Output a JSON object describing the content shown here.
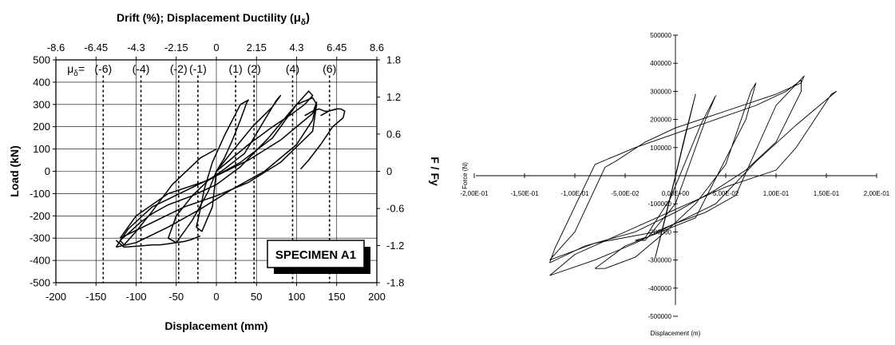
{
  "chart_data": [
    {
      "type": "line",
      "title": "",
      "top_axis": {
        "label": "Drift (%);  Displacement Ductility (",
        "label_symbol": "μ",
        "label_sub": "δ",
        "label_close": ")",
        "ticks": [
          {
            "label": "-8.6",
            "value": -200
          },
          {
            "label": "-6.45",
            "value": -150
          },
          {
            "label": "-4.3",
            "value": -100
          },
          {
            "label": "-2.15",
            "value": -50
          },
          {
            "label": "0",
            "value": 0
          },
          {
            "label": "2.15",
            "value": 50
          },
          {
            "label": "4.3",
            "value": 100
          },
          {
            "label": "6.45",
            "value": 150
          },
          {
            "label": "8.6",
            "value": 200
          }
        ]
      },
      "xlabel": "Displacement (mm)",
      "ylabel": "Load (kN)",
      "y2label": "F / Fy",
      "xlim": [
        -200,
        200
      ],
      "ylim": [
        -500,
        500
      ],
      "xticks": [
        -200,
        -150,
        -100,
        -50,
        0,
        50,
        100,
        150,
        200
      ],
      "yticks": [
        -500,
        -400,
        -300,
        -200,
        -100,
        0,
        100,
        200,
        300,
        400,
        500
      ],
      "y2ticks": [
        {
          "label": "1.8",
          "value": 500
        },
        {
          "label": "1.2",
          "value": 333
        },
        {
          "label": "0.6",
          "value": 167
        },
        {
          "label": "0",
          "value": 0
        },
        {
          "label": "-0.6",
          "value": -167
        },
        {
          "label": "-1.2",
          "value": -333
        },
        {
          "label": "-1.8",
          "value": -500
        }
      ],
      "gridlines": true,
      "ductility_prefix": "μ",
      "ductility_sub": "δ",
      "ductility_eq": "=",
      "ductility_levels": [
        {
          "label": "(-6)",
          "x": -141
        },
        {
          "label": "(-4)",
          "x": -94
        },
        {
          "label": "(-2)",
          "x": -47
        },
        {
          "label": "(-1)",
          "x": -23
        },
        {
          "label": "(1)",
          "x": 24
        },
        {
          "label": "(2)",
          "x": 47
        },
        {
          "label": "(4)",
          "x": 95
        },
        {
          "label": "(6)",
          "x": 141
        }
      ],
      "annotation": "SPECIMEN A1",
      "series": [
        {
          "values_x": [
            0,
            10,
            20,
            30,
            38,
            40,
            30,
            10,
            -5,
            -15,
            -20,
            -25,
            -18,
            -5,
            0
          ],
          "values_y": [
            0,
            60,
            140,
            230,
            310,
            320,
            300,
            160,
            40,
            -80,
            -170,
            -250,
            -270,
            -160,
            0
          ]
        },
        {
          "values_x": [
            0,
            20,
            45,
            70,
            80,
            75,
            55,
            35,
            10,
            -10,
            -30,
            -50,
            -60,
            -50,
            -30,
            -10,
            0
          ],
          "values_y": [
            0,
            90,
            200,
            290,
            340,
            320,
            200,
            80,
            10,
            -40,
            -110,
            -200,
            -300,
            -320,
            -220,
            -90,
            0
          ]
        },
        {
          "values_x": [
            0,
            40,
            70,
            95,
            110,
            120,
            115,
            95,
            65,
            30,
            0,
            -30,
            -60,
            -80,
            -95,
            -110,
            -120,
            -115,
            -100,
            -80,
            -55,
            -20,
            0
          ],
          "values_y": [
            0,
            120,
            200,
            260,
            300,
            340,
            360,
            280,
            150,
            20,
            -60,
            -110,
            -150,
            -190,
            -230,
            -280,
            -310,
            -330,
            -270,
            -180,
            -60,
            60,
            100
          ]
        },
        {
          "values_x": [
            -120,
            -80,
            -40,
            0,
            40,
            80,
            120,
            125,
            120,
            100,
            70,
            30,
            -10,
            -60,
            -100,
            -120
          ],
          "values_y": [
            -300,
            -230,
            -160,
            -110,
            -50,
            40,
            180,
            300,
            330,
            300,
            150,
            40,
            -40,
            -100,
            -200,
            -300
          ]
        },
        {
          "values_x": [
            -125,
            -100,
            -60,
            -20,
            20,
            60,
            100,
            120,
            125,
            120,
            80,
            40,
            0,
            -40,
            -80,
            -110,
            -125
          ],
          "values_y": [
            -340,
            -320,
            -250,
            -170,
            -80,
            0,
            120,
            230,
            310,
            260,
            140,
            50,
            -20,
            -90,
            -160,
            -260,
            -340
          ]
        },
        {
          "values_x": [
            -125,
            -115,
            -95,
            -80,
            -70,
            -60,
            -50,
            -40,
            -30,
            -20
          ],
          "values_y": [
            -310,
            -340,
            -335,
            -330,
            -330,
            -325,
            -320,
            -315,
            -305,
            -290
          ]
        },
        {
          "values_x": [
            130,
            140,
            150,
            155,
            160,
            158,
            145,
            130,
            115,
            105
          ],
          "values_y": [
            250,
            270,
            280,
            280,
            270,
            240,
            200,
            120,
            50,
            10
          ]
        },
        {
          "values_x": [
            110,
            120,
            128,
            135,
            140,
            150
          ],
          "values_y": [
            250,
            270,
            280,
            270,
            270,
            280
          ]
        }
      ]
    },
    {
      "type": "line",
      "title": "",
      "xlabel": "Displacement (m)",
      "ylabel": "Force (N)",
      "xlim": [
        -0.2,
        0.2
      ],
      "ylim": [
        -500000,
        500000
      ],
      "xtick_labels": [
        {
          "label": "-2,00E-01",
          "value": -0.2
        },
        {
          "label": "-1,50E-01",
          "value": -0.15
        },
        {
          "label": "-1,00E-01",
          "value": -0.1
        },
        {
          "label": "-5,00E-02",
          "value": -0.05
        },
        {
          "label": "0,00E+00",
          "value": 0
        },
        {
          "label": "5,00E-02",
          "value": 0.05
        },
        {
          "label": "1,00E-01",
          "value": 0.1
        },
        {
          "label": "1,50E-01",
          "value": 0.15
        },
        {
          "label": "2,00E-01",
          "value": 0.2
        }
      ],
      "ytick_labels": [
        {
          "label": "500000",
          "value": 500000
        },
        {
          "label": "400000",
          "value": 400000
        },
        {
          "label": "300000",
          "value": 300000
        },
        {
          "label": "200000",
          "value": 200000
        },
        {
          "label": "100000",
          "value": 100000
        },
        {
          "label": "-100000",
          "value": -100000
        },
        {
          "label": "-200000",
          "value": -200000
        },
        {
          "label": "-300000",
          "value": -300000
        },
        {
          "label": "-400000",
          "value": -400000
        },
        {
          "label": "-500000",
          "value": -500000
        }
      ],
      "gridlines": false,
      "series": [
        {
          "values_x": [
            0,
            0.01,
            0.02,
            -0.01,
            -0.02,
            0
          ],
          "values_y": [
            0,
            150000,
            290000,
            -150000,
            -290000,
            0
          ]
        },
        {
          "values_x": [
            -0.03,
            0,
            0.03,
            0.04,
            0.025,
            -0.005,
            -0.03,
            -0.04,
            -0.03
          ],
          "values_y": [
            -230000,
            -100000,
            200000,
            285000,
            180000,
            -80000,
            -220000,
            -230000,
            -230000
          ]
        },
        {
          "values_x": [
            -0.08,
            -0.05,
            0.02,
            0.07,
            0.08,
            0.075,
            0.05,
            0.02,
            -0.01,
            -0.04,
            -0.07,
            -0.08
          ],
          "values_y": [
            -330000,
            -250000,
            -150000,
            200000,
            330000,
            300000,
            40000,
            -100000,
            -200000,
            -290000,
            -330000,
            -330000
          ]
        },
        {
          "values_x": [
            -0.125,
            -0.1,
            -0.07,
            -0.06,
            -0.03,
            0,
            0.05,
            0.1,
            0.125,
            0.128,
            0.1,
            0.06,
            0.03,
            0,
            -0.02,
            -0.08,
            -0.125
          ],
          "values_y": [
            -300000,
            -200000,
            30000,
            50000,
            120000,
            170000,
            230000,
            290000,
            330000,
            355000,
            250000,
            -70000,
            -130000,
            -170000,
            -200000,
            -240000,
            -300000
          ]
        },
        {
          "values_x": [
            -0.125,
            -0.12,
            -0.08,
            -0.04,
            0,
            0.04,
            0.08,
            0.11,
            0.125,
            0.125,
            0.1,
            0.07,
            0.04,
            0,
            -0.04,
            -0.09,
            -0.125
          ],
          "values_y": [
            -310000,
            -260000,
            40000,
            100000,
            150000,
            200000,
            250000,
            300000,
            340000,
            300000,
            120000,
            20000,
            -50000,
            -130000,
            -200000,
            -250000,
            -310000
          ]
        },
        {
          "values_x": [
            -0.125,
            -0.08,
            -0.04,
            0,
            0.04,
            0.08,
            0.12,
            0.16,
            0.155,
            0.12,
            0.1,
            0.05,
            0,
            -0.05,
            -0.1,
            -0.125
          ],
          "values_y": [
            -355000,
            -300000,
            -240000,
            -170000,
            -100000,
            50000,
            180000,
            300000,
            290000,
            100000,
            20000,
            -40000,
            -120000,
            -200000,
            -280000,
            -355000
          ]
        }
      ]
    }
  ]
}
